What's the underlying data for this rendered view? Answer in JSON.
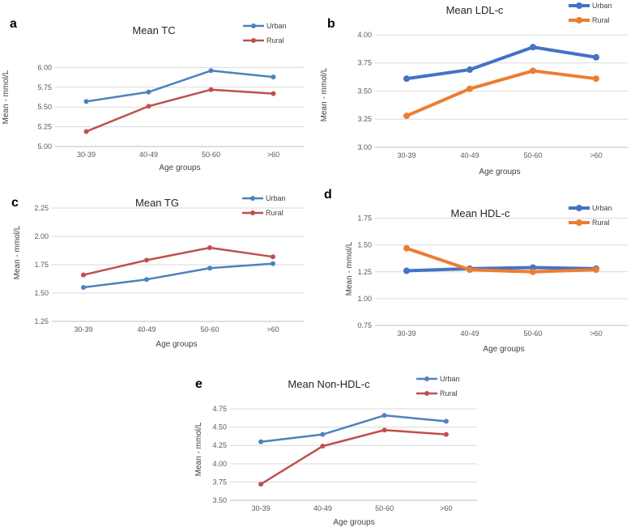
{
  "chart_data": [
    {
      "id": "a",
      "type": "line",
      "title": "Mean TC",
      "xlabel": "Age groups",
      "ylabel": "Mean - mmol/L",
      "categories": [
        "30-39",
        "40-49",
        "50-60",
        ">60"
      ],
      "ylim": [
        5.0,
        6.25
      ],
      "ytick_labels": [
        "5.00",
        "5.25",
        "5.50",
        "5.75",
        "6.00"
      ],
      "series": [
        {
          "name": "Urban",
          "color": "#4f81bd",
          "values": [
            5.57,
            5.69,
            5.96,
            5.88
          ]
        },
        {
          "name": "Rural",
          "color": "#c0504d",
          "values": [
            5.19,
            5.51,
            5.72,
            5.67
          ]
        }
      ]
    },
    {
      "id": "b",
      "type": "line",
      "title": "Mean LDL-c",
      "xlabel": "Age groups",
      "ylabel": "Mean - mmol/L",
      "categories": [
        "30-39",
        "40-49",
        "50-60",
        ">60"
      ],
      "ylim": [
        3.0,
        4.05
      ],
      "ytick_labels": [
        "3.00",
        "3.25",
        "3.50",
        "3.75",
        "4.00"
      ],
      "series": [
        {
          "name": "Urban",
          "color": "#4472c4",
          "values": [
            3.61,
            3.69,
            3.89,
            3.8
          ]
        },
        {
          "name": "Rural",
          "color": "#ed7d31",
          "values": [
            3.28,
            3.52,
            3.68,
            3.61
          ]
        }
      ]
    },
    {
      "id": "c",
      "type": "line",
      "title": "Mean TG",
      "xlabel": "Age groups",
      "ylabel": "Mean - mmol/L",
      "categories": [
        "30-39",
        "40-49",
        "50-60",
        ">60"
      ],
      "ylim": [
        1.25,
        2.35
      ],
      "ytick_labels": [
        "1.25",
        "1.50",
        "1.75",
        "2.00",
        "2.25"
      ],
      "series": [
        {
          "name": "Urban",
          "color": "#4f81bd",
          "values": [
            1.55,
            1.62,
            1.72,
            1.76
          ]
        },
        {
          "name": "Rural",
          "color": "#c0504d",
          "values": [
            1.66,
            1.79,
            1.9,
            1.82
          ]
        }
      ]
    },
    {
      "id": "d",
      "type": "line",
      "title": "Mean HDL-c",
      "xlabel": "Age groups",
      "ylabel": "Mean - mmol/L",
      "categories": [
        "30-39",
        "40-49",
        "50-60",
        ">60"
      ],
      "ylim": [
        0.75,
        1.8
      ],
      "ytick_labels": [
        "0.75",
        "1.00",
        "1.25",
        "1.50",
        "1.75"
      ],
      "series": [
        {
          "name": "Urban",
          "color": "#4472c4",
          "values": [
            1.26,
            1.28,
            1.29,
            1.28
          ]
        },
        {
          "name": "Rural",
          "color": "#ed7d31",
          "values": [
            1.47,
            1.27,
            1.25,
            1.27
          ]
        }
      ]
    },
    {
      "id": "e",
      "type": "line",
      "title": "Mean Non-HDL-c",
      "xlabel": "Age groups",
      "ylabel": "Mean - mmol/L",
      "categories": [
        "30-39",
        "40-49",
        "50-60",
        ">60"
      ],
      "ylim": [
        3.5,
        4.85
      ],
      "ytick_labels": [
        "3.50",
        "3.75",
        "4.00",
        "4.25",
        "4.50",
        "4.75"
      ],
      "series": [
        {
          "name": "Urban",
          "color": "#4f81bd",
          "values": [
            4.3,
            4.4,
            4.66,
            4.58
          ]
        },
        {
          "name": "Rural",
          "color": "#c0504d",
          "values": [
            3.72,
            4.24,
            4.46,
            4.4
          ]
        }
      ]
    }
  ]
}
